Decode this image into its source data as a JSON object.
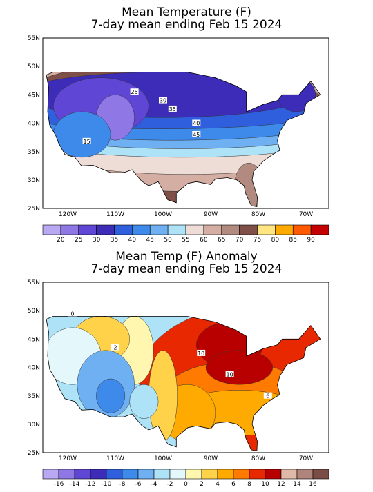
{
  "maps": [
    {
      "title_lines": [
        "Mean Temperature (F)",
        "7-day mean ending Feb 15 2024"
      ],
      "lat_labels": [
        "55N",
        "50N",
        "45N",
        "40N",
        "35N",
        "30N",
        "25N"
      ],
      "lon_labels": [
        "120W",
        "110W",
        "100W",
        "90W",
        "80W",
        "70W"
      ],
      "contour_labels": [
        "25",
        "30",
        "35",
        "40",
        "45",
        "15"
      ],
      "colorbar": {
        "labels": [
          "20",
          "25",
          "30",
          "35",
          "40",
          "45",
          "50",
          "55",
          "60",
          "65",
          "70",
          "75",
          "80",
          "85",
          "90"
        ],
        "colors": [
          "#b9a8f2",
          "#8f78e6",
          "#5f46d4",
          "#3c2cb8",
          "#2f5fdc",
          "#3e8aea",
          "#6eb0f2",
          "#aee2f7",
          "#eedcd6",
          "#d4aea3",
          "#b28a80",
          "#7e5048",
          "#ffe680",
          "#ffaa00",
          "#ff5a00",
          "#c40000"
        ]
      }
    },
    {
      "title_lines": [
        "Mean Temp (F) Anomaly",
        "7-day mean ending Feb 15 2024"
      ],
      "lat_labels": [
        "55N",
        "50N",
        "45N",
        "40N",
        "35N",
        "30N",
        "25N"
      ],
      "lon_labels": [
        "120W",
        "110W",
        "100W",
        "90W",
        "80W",
        "70W"
      ],
      "contour_labels": [
        "0",
        "2",
        "10",
        "10",
        "6"
      ],
      "colorbar": {
        "labels": [
          "-16",
          "-14",
          "-12",
          "-10",
          "-8",
          "-6",
          "-4",
          "-2",
          "0",
          "2",
          "4",
          "6",
          "8",
          "10",
          "12",
          "14",
          "16"
        ],
        "colors": [
          "#b9a8f2",
          "#8f78e6",
          "#5f46d4",
          "#3c2cb8",
          "#2f5fdc",
          "#3e8aea",
          "#6eb0f2",
          "#aee2f7",
          "#e4f8fb",
          "#fff6b0",
          "#ffd24a",
          "#ffaa00",
          "#ff7a00",
          "#e82800",
          "#b80000",
          "#e0b8a8",
          "#b0847a",
          "#7a4e46"
        ]
      }
    }
  ]
}
